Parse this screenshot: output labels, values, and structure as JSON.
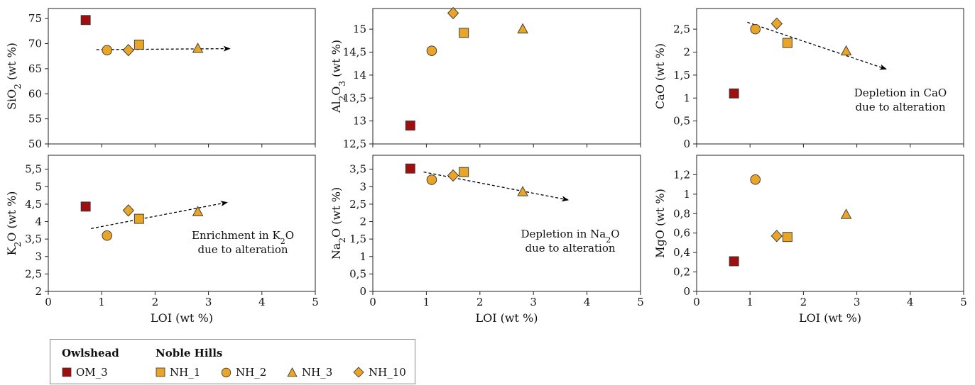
{
  "chart_data": [
    {
      "type": "scatter",
      "panel": "sio2",
      "xlabel": "LOI (wt %)",
      "ylabel": "SiO2 (wt %)",
      "xlim": [
        0,
        5
      ],
      "ylim": [
        50,
        77
      ],
      "xticks": [],
      "yticks": [
        "50",
        "55",
        "60",
        "65",
        "70",
        "75"
      ],
      "series": [
        {
          "name": "OM_3",
          "marker": "square",
          "color": "#A00F0F",
          "points": [
            [
              0.7,
              74.7
            ]
          ]
        },
        {
          "name": "NH_1",
          "marker": "square",
          "color": "#E8A527",
          "points": [
            [
              1.7,
              69.8
            ]
          ]
        },
        {
          "name": "NH_2",
          "marker": "circle",
          "color": "#E8A527",
          "points": [
            [
              1.1,
              68.7
            ]
          ]
        },
        {
          "name": "NH_3",
          "marker": "triangle",
          "color": "#E8A527",
          "points": [
            [
              2.8,
              69.0
            ]
          ]
        },
        {
          "name": "NH_10",
          "marker": "diamond",
          "color": "#E8A527",
          "points": [
            [
              1.5,
              68.7
            ]
          ]
        }
      ],
      "trend": [
        [
          0.9,
          68.8
        ],
        [
          3.4,
          69.0
        ]
      ],
      "annotation": []
    },
    {
      "type": "scatter",
      "panel": "al2o3",
      "xlabel": "LOI (wt %)",
      "ylabel": "Al2O3 (wt %)",
      "xlim": [
        0,
        5
      ],
      "ylim": [
        12.5,
        15.45
      ],
      "xticks": [],
      "yticks": [
        "12,5",
        "13",
        "13,5",
        "14",
        "14,5",
        "15"
      ],
      "series": [
        {
          "name": "OM_3",
          "marker": "square",
          "color": "#A00F0F",
          "points": [
            [
              0.7,
              12.9
            ]
          ]
        },
        {
          "name": "NH_1",
          "marker": "square",
          "color": "#E8A527",
          "points": [
            [
              1.7,
              14.92
            ]
          ]
        },
        {
          "name": "NH_2",
          "marker": "circle",
          "color": "#E8A527",
          "points": [
            [
              1.1,
              14.53
            ]
          ]
        },
        {
          "name": "NH_3",
          "marker": "triangle",
          "color": "#E8A527",
          "points": [
            [
              2.8,
              15.0
            ]
          ]
        },
        {
          "name": "NH_10",
          "marker": "diamond",
          "color": "#E8A527",
          "points": [
            [
              1.5,
              15.35
            ]
          ]
        }
      ],
      "trend": [],
      "annotation": []
    },
    {
      "type": "scatter",
      "panel": "cao",
      "xlabel": "LOI (wt %)",
      "ylabel": "CaO (wt %)",
      "xlim": [
        0,
        5
      ],
      "ylim": [
        0,
        2.95
      ],
      "xticks": [],
      "yticks": [
        "0",
        "0,5",
        "1",
        "1,5",
        "2",
        "2,5"
      ],
      "series": [
        {
          "name": "OM_3",
          "marker": "square",
          "color": "#A00F0F",
          "points": [
            [
              0.7,
              1.1
            ]
          ]
        },
        {
          "name": "NH_1",
          "marker": "square",
          "color": "#E8A527",
          "points": [
            [
              1.7,
              2.2
            ]
          ]
        },
        {
          "name": "NH_2",
          "marker": "circle",
          "color": "#E8A527",
          "points": [
            [
              1.1,
              2.5
            ]
          ]
        },
        {
          "name": "NH_3",
          "marker": "triangle",
          "color": "#E8A527",
          "points": [
            [
              2.8,
              2.02
            ]
          ]
        },
        {
          "name": "NH_10",
          "marker": "diamond",
          "color": "#E8A527",
          "points": [
            [
              1.5,
              2.62
            ]
          ]
        }
      ],
      "trend": [
        [
          0.95,
          2.65
        ],
        [
          3.55,
          1.63
        ]
      ],
      "annotation": [
        "Depletion in CaO",
        "due to alteration"
      ]
    },
    {
      "type": "scatter",
      "panel": "k2o",
      "xlabel": "LOI (wt %)",
      "ylabel": "K2O (wt %)",
      "xlim": [
        0,
        5
      ],
      "ylim": [
        2,
        5.9
      ],
      "xticks": [
        "0",
        "1",
        "2",
        "3",
        "4",
        "5"
      ],
      "yticks": [
        "2",
        "2,5",
        "3",
        "3,5",
        "4",
        "4,5",
        "5",
        "5,5"
      ],
      "series": [
        {
          "name": "OM_3",
          "marker": "square",
          "color": "#A00F0F",
          "points": [
            [
              0.7,
              4.43
            ]
          ]
        },
        {
          "name": "NH_1",
          "marker": "square",
          "color": "#E8A527",
          "points": [
            [
              1.7,
              4.08
            ]
          ]
        },
        {
          "name": "NH_2",
          "marker": "circle",
          "color": "#E8A527",
          "points": [
            [
              1.1,
              3.6
            ]
          ]
        },
        {
          "name": "NH_3",
          "marker": "triangle",
          "color": "#E8A527",
          "points": [
            [
              2.8,
              4.28
            ]
          ]
        },
        {
          "name": "NH_10",
          "marker": "diamond",
          "color": "#E8A527",
          "points": [
            [
              1.5,
              4.32
            ]
          ]
        }
      ],
      "trend": [
        [
          0.8,
          3.8
        ],
        [
          3.35,
          4.55
        ]
      ],
      "annotation": [
        "Enrichment in K2O",
        "due to alteration"
      ]
    },
    {
      "type": "scatter",
      "panel": "na2o",
      "xlabel": "LOI (wt %)",
      "ylabel": "Na2O (wt %)",
      "xlim": [
        0,
        5
      ],
      "ylim": [
        0,
        3.9
      ],
      "xticks": [
        "0",
        "1",
        "2",
        "3",
        "4",
        "5"
      ],
      "yticks": [
        "0",
        "0,5",
        "1",
        "1,5",
        "2",
        "2,5",
        "3",
        "3,5"
      ],
      "series": [
        {
          "name": "OM_3",
          "marker": "square",
          "color": "#A00F0F",
          "points": [
            [
              0.7,
              3.52
            ]
          ]
        },
        {
          "name": "NH_1",
          "marker": "square",
          "color": "#E8A527",
          "points": [
            [
              1.7,
              3.42
            ]
          ]
        },
        {
          "name": "NH_2",
          "marker": "circle",
          "color": "#E8A527",
          "points": [
            [
              1.1,
              3.2
            ]
          ]
        },
        {
          "name": "NH_3",
          "marker": "triangle",
          "color": "#E8A527",
          "points": [
            [
              2.8,
              2.85
            ]
          ]
        },
        {
          "name": "NH_10",
          "marker": "diamond",
          "color": "#E8A527",
          "points": [
            [
              1.5,
              3.32
            ]
          ]
        }
      ],
      "trend": [
        [
          0.95,
          3.42
        ],
        [
          3.65,
          2.62
        ]
      ],
      "annotation": [
        "Depletion in Na2O",
        "due to alteration"
      ]
    },
    {
      "type": "scatter",
      "panel": "mgo",
      "xlabel": "LOI (wt %)",
      "ylabel": "MgO (wt %)",
      "xlim": [
        0,
        5
      ],
      "ylim": [
        0,
        1.4
      ],
      "xticks": [
        "0",
        "1",
        "2",
        "3",
        "4",
        "5"
      ],
      "yticks": [
        "0",
        "0,2",
        "0,4",
        "0,6",
        "0,8",
        "1",
        "1,2"
      ],
      "series": [
        {
          "name": "OM_3",
          "marker": "square",
          "color": "#A00F0F",
          "points": [
            [
              0.7,
              0.31
            ]
          ]
        },
        {
          "name": "NH_1",
          "marker": "square",
          "color": "#E8A527",
          "points": [
            [
              1.7,
              0.56
            ]
          ]
        },
        {
          "name": "NH_2",
          "marker": "circle",
          "color": "#E8A527",
          "points": [
            [
              1.1,
              1.15
            ]
          ]
        },
        {
          "name": "NH_3",
          "marker": "triangle",
          "color": "#E8A527",
          "points": [
            [
              2.8,
              0.79
            ]
          ]
        },
        {
          "name": "NH_10",
          "marker": "diamond",
          "color": "#E8A527",
          "points": [
            [
              1.5,
              0.57
            ]
          ]
        }
      ],
      "trend": [],
      "annotation": []
    }
  ],
  "legend": {
    "group_owlshead": "Owlshead",
    "group_noble_hills": "Noble Hills",
    "items": [
      "OM_3",
      "NH_1",
      "NH_2",
      "NH_3",
      "NH_10"
    ]
  },
  "colors": {
    "owlshead": "#A00F0F",
    "noble_hills": "#E8A527"
  }
}
